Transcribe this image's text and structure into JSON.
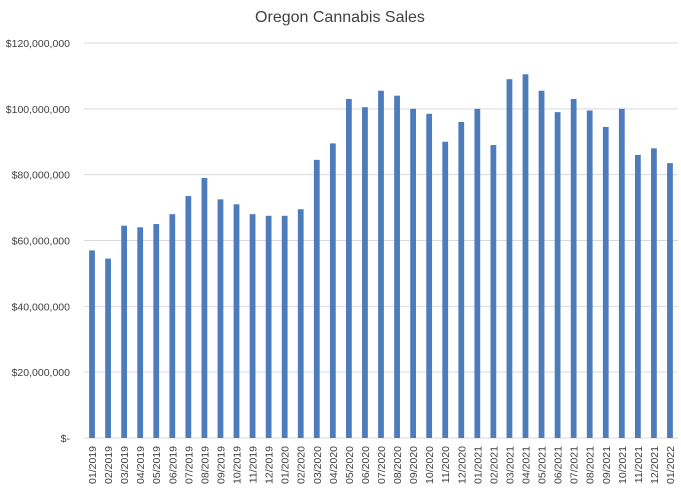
{
  "chart_data": {
    "type": "bar",
    "title": "Oregon Cannabis Sales",
    "xlabel": "",
    "ylabel": "",
    "ylim": [
      0,
      120000000
    ],
    "yticks": [
      {
        "value": 0,
        "label": "$-"
      },
      {
        "value": 20000000,
        "label": "$20,000,000"
      },
      {
        "value": 40000000,
        "label": "$40,000,000"
      },
      {
        "value": 60000000,
        "label": "$60,000,000"
      },
      {
        "value": 80000000,
        "label": "$80,000,000"
      },
      {
        "value": 100000000,
        "label": "$100,000,000"
      },
      {
        "value": 120000000,
        "label": "$120,000,000"
      }
    ],
    "grid": true,
    "legend": "none",
    "bar_color": "#4e7cba",
    "categories": [
      "01/2019",
      "02/2019",
      "03/2019",
      "04/2019",
      "05/2019",
      "06/2019",
      "07/2019",
      "08/2019",
      "09/2019",
      "10/2019",
      "11/2019",
      "12/2019",
      "01/2020",
      "02/2020",
      "03/2020",
      "04/2020",
      "05/2020",
      "06/2020",
      "07/2020",
      "08/2020",
      "09/2020",
      "10/2020",
      "11/2020",
      "12/2020",
      "01/2021",
      "02/2021",
      "03/2021",
      "04/2021",
      "05/2021",
      "06/2021",
      "07/2021",
      "08/2021",
      "09/2021",
      "10/2021",
      "11/2021",
      "12/2021",
      "01/2022"
    ],
    "values": [
      57000000,
      54500000,
      64500000,
      64000000,
      65000000,
      68000000,
      73500000,
      79000000,
      72500000,
      71000000,
      68000000,
      67500000,
      67500000,
      69500000,
      84500000,
      89500000,
      103000000,
      100500000,
      105500000,
      104000000,
      100000000,
      98500000,
      90000000,
      96000000,
      100000000,
      89000000,
      109000000,
      110500000,
      105500000,
      99000000,
      103000000,
      99500000,
      94500000,
      100000000,
      86000000,
      88000000,
      83500000
    ]
  }
}
